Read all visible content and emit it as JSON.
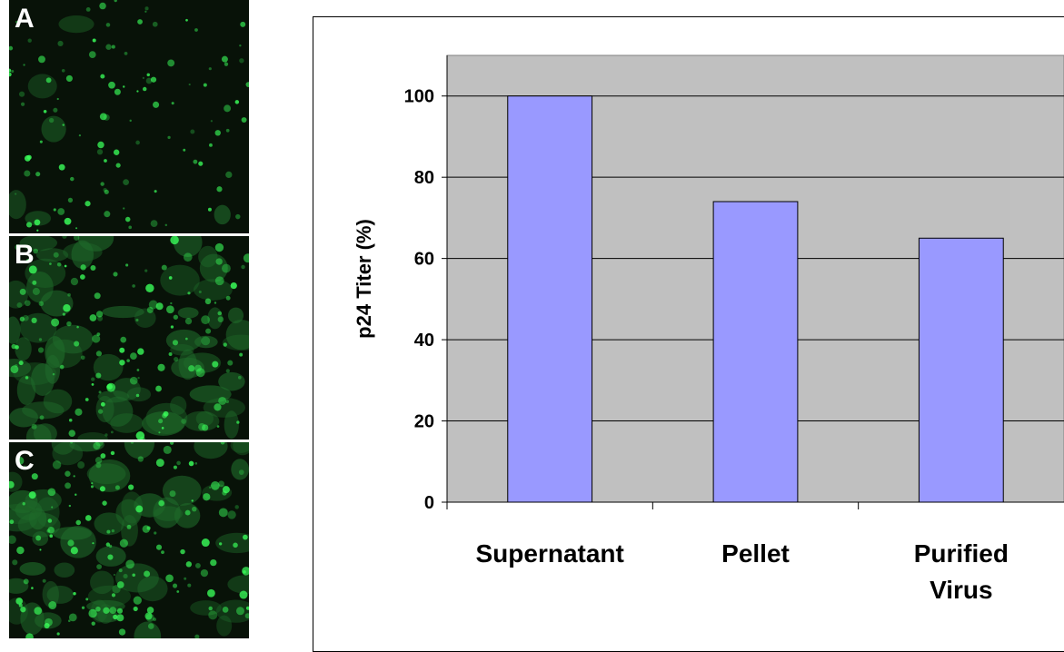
{
  "panels": [
    {
      "label": "A",
      "description": "fluorescent-cells-sparse"
    },
    {
      "label": "B",
      "description": "fluorescent-cells-dense"
    },
    {
      "label": "C",
      "description": "fluorescent-cells-dense"
    }
  ],
  "colors": {
    "plot_background": "#c0c0c0",
    "bar_fill": "#9999ff",
    "bar_stroke": "#000000",
    "micrograph_background": "#081208",
    "cell_green": "#3aff5a"
  },
  "chart_data": {
    "type": "bar",
    "categories": [
      "Supernatant",
      "Pellet",
      "Purified Virus"
    ],
    "category_lines": [
      [
        "Supernatant"
      ],
      [
        "Pellet"
      ],
      [
        "Purified",
        "Virus"
      ]
    ],
    "values": [
      100,
      74,
      65
    ],
    "title": "",
    "xlabel": "",
    "ylabel": "p24 Titer (%)",
    "ylim": [
      0,
      110
    ],
    "yticks": [
      0,
      20,
      40,
      60,
      80,
      100
    ],
    "grid": true,
    "legend": "none"
  }
}
